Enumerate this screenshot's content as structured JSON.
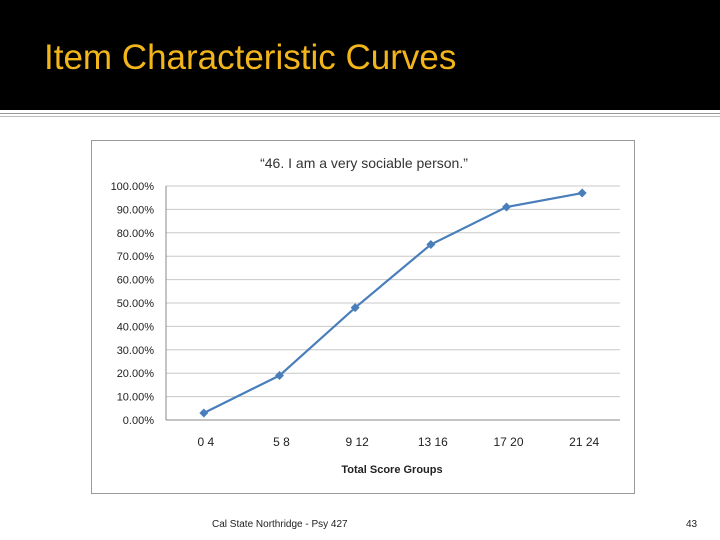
{
  "slide": {
    "title": "Item Characteristic Curves",
    "footer": "Cal State Northridge - Psy 427",
    "page_number": "43"
  },
  "colors": {
    "title": "#f2b61a",
    "title_bar": "#000000",
    "series": "#4a7ebb"
  },
  "chart_data": {
    "type": "line",
    "title": "“46. I am a very sociable person.”",
    "xlabel": "Total Score Groups",
    "ylabel": "",
    "categories": [
      "0 4",
      "5 8",
      "9 12",
      "13 16",
      "17 20",
      "21 24"
    ],
    "yticks": [
      "0.00%",
      "10.00%",
      "20.00%",
      "30.00%",
      "40.00%",
      "50.00%",
      "60.00%",
      "70.00%",
      "80.00%",
      "90.00%",
      "100.00%"
    ],
    "ylim": [
      0,
      1
    ],
    "grid": true,
    "legend": "none",
    "series": [
      {
        "values": [
          0.03,
          0.19,
          0.48,
          0.75,
          0.91,
          0.97
        ]
      }
    ]
  }
}
